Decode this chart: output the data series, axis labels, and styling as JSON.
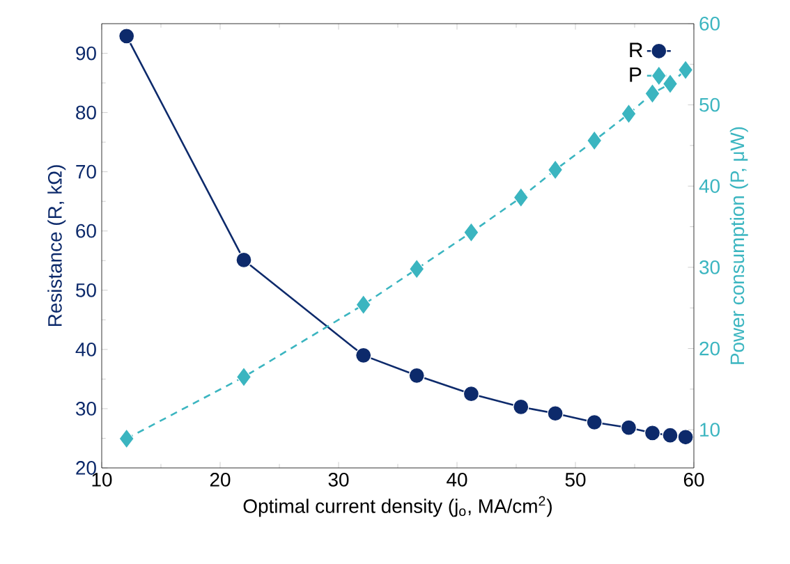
{
  "chart_data": {
    "type": "line",
    "xlabel": "Optimal current density (j$_{o}$, MA/cm$^{2}$)",
    "ylabel": "Resistance (R, kΩ)",
    "y2label": "Power consumption (P, μW)",
    "xlim": [
      10,
      60
    ],
    "xticks": [
      10,
      20,
      30,
      40,
      50,
      60
    ],
    "ylim": [
      20,
      95
    ],
    "yticks": [
      20,
      30,
      40,
      50,
      60,
      70,
      80,
      90
    ],
    "y2lim": [
      5.3,
      60
    ],
    "y2ticks": [
      10,
      20,
      30,
      40,
      50,
      60
    ],
    "grid": false,
    "legend": "top right",
    "x": [
      12.1,
      22.0,
      32.1,
      36.6,
      41.2,
      45.4,
      48.3,
      51.6,
      54.5,
      56.5,
      58.0,
      59.3
    ],
    "series": [
      {
        "name": "R",
        "color": "#0d2a6b",
        "marker": "circle",
        "line_style": "solid",
        "values": [
          92.9,
          55.1,
          39.0,
          35.6,
          32.5,
          30.3,
          29.2,
          27.7,
          26.8,
          25.9,
          25.5,
          25.2
        ]
      },
      {
        "name": "P",
        "color": "#3bb5c0",
        "marker": "diamond",
        "line_style": "dashed",
        "axis": "y2",
        "values": [
          8.9,
          16.5,
          25.4,
          29.8,
          34.3,
          38.6,
          42.0,
          45.6,
          48.9,
          51.4,
          52.6,
          54.3
        ]
      }
    ]
  }
}
